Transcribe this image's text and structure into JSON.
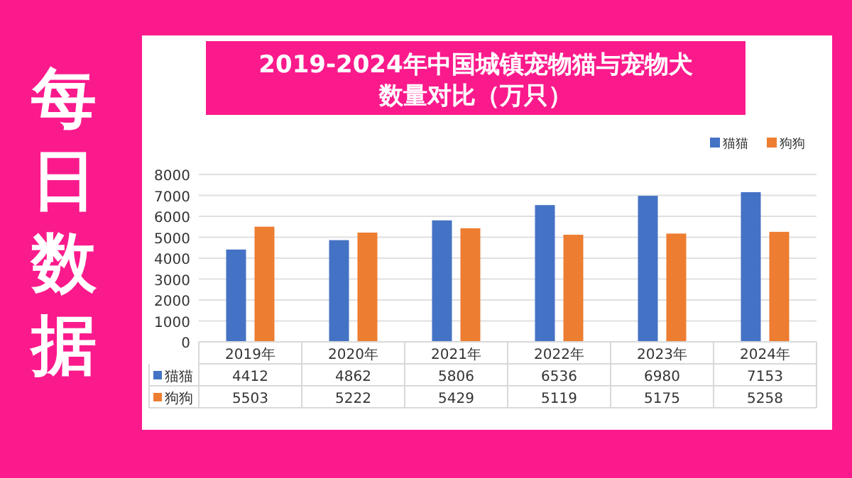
{
  "chart_data": {
    "type": "bar",
    "title": "2019-2024年中国城镇宠物猫与宠物犬数量对比（万只）",
    "categories": [
      "2019年",
      "2020年",
      "2021年",
      "2022年",
      "2023年",
      "2024年"
    ],
    "series": [
      {
        "name": "猫猫",
        "color": "#4472c4",
        "values": [
          4412,
          4862,
          5806,
          6536,
          6980,
          7153
        ]
      },
      {
        "name": "狗狗",
        "color": "#ed7d31",
        "values": [
          5503,
          5222,
          5429,
          5119,
          5175,
          5258
        ]
      }
    ],
    "ylim": [
      0,
      8000
    ],
    "yticks": [
      0,
      1000,
      2000,
      3000,
      4000,
      5000,
      6000,
      7000,
      8000
    ],
    "grid": "y",
    "legend": "top right",
    "data_labels": true,
    "annotations": [
      "每日数据"
    ]
  }
}
